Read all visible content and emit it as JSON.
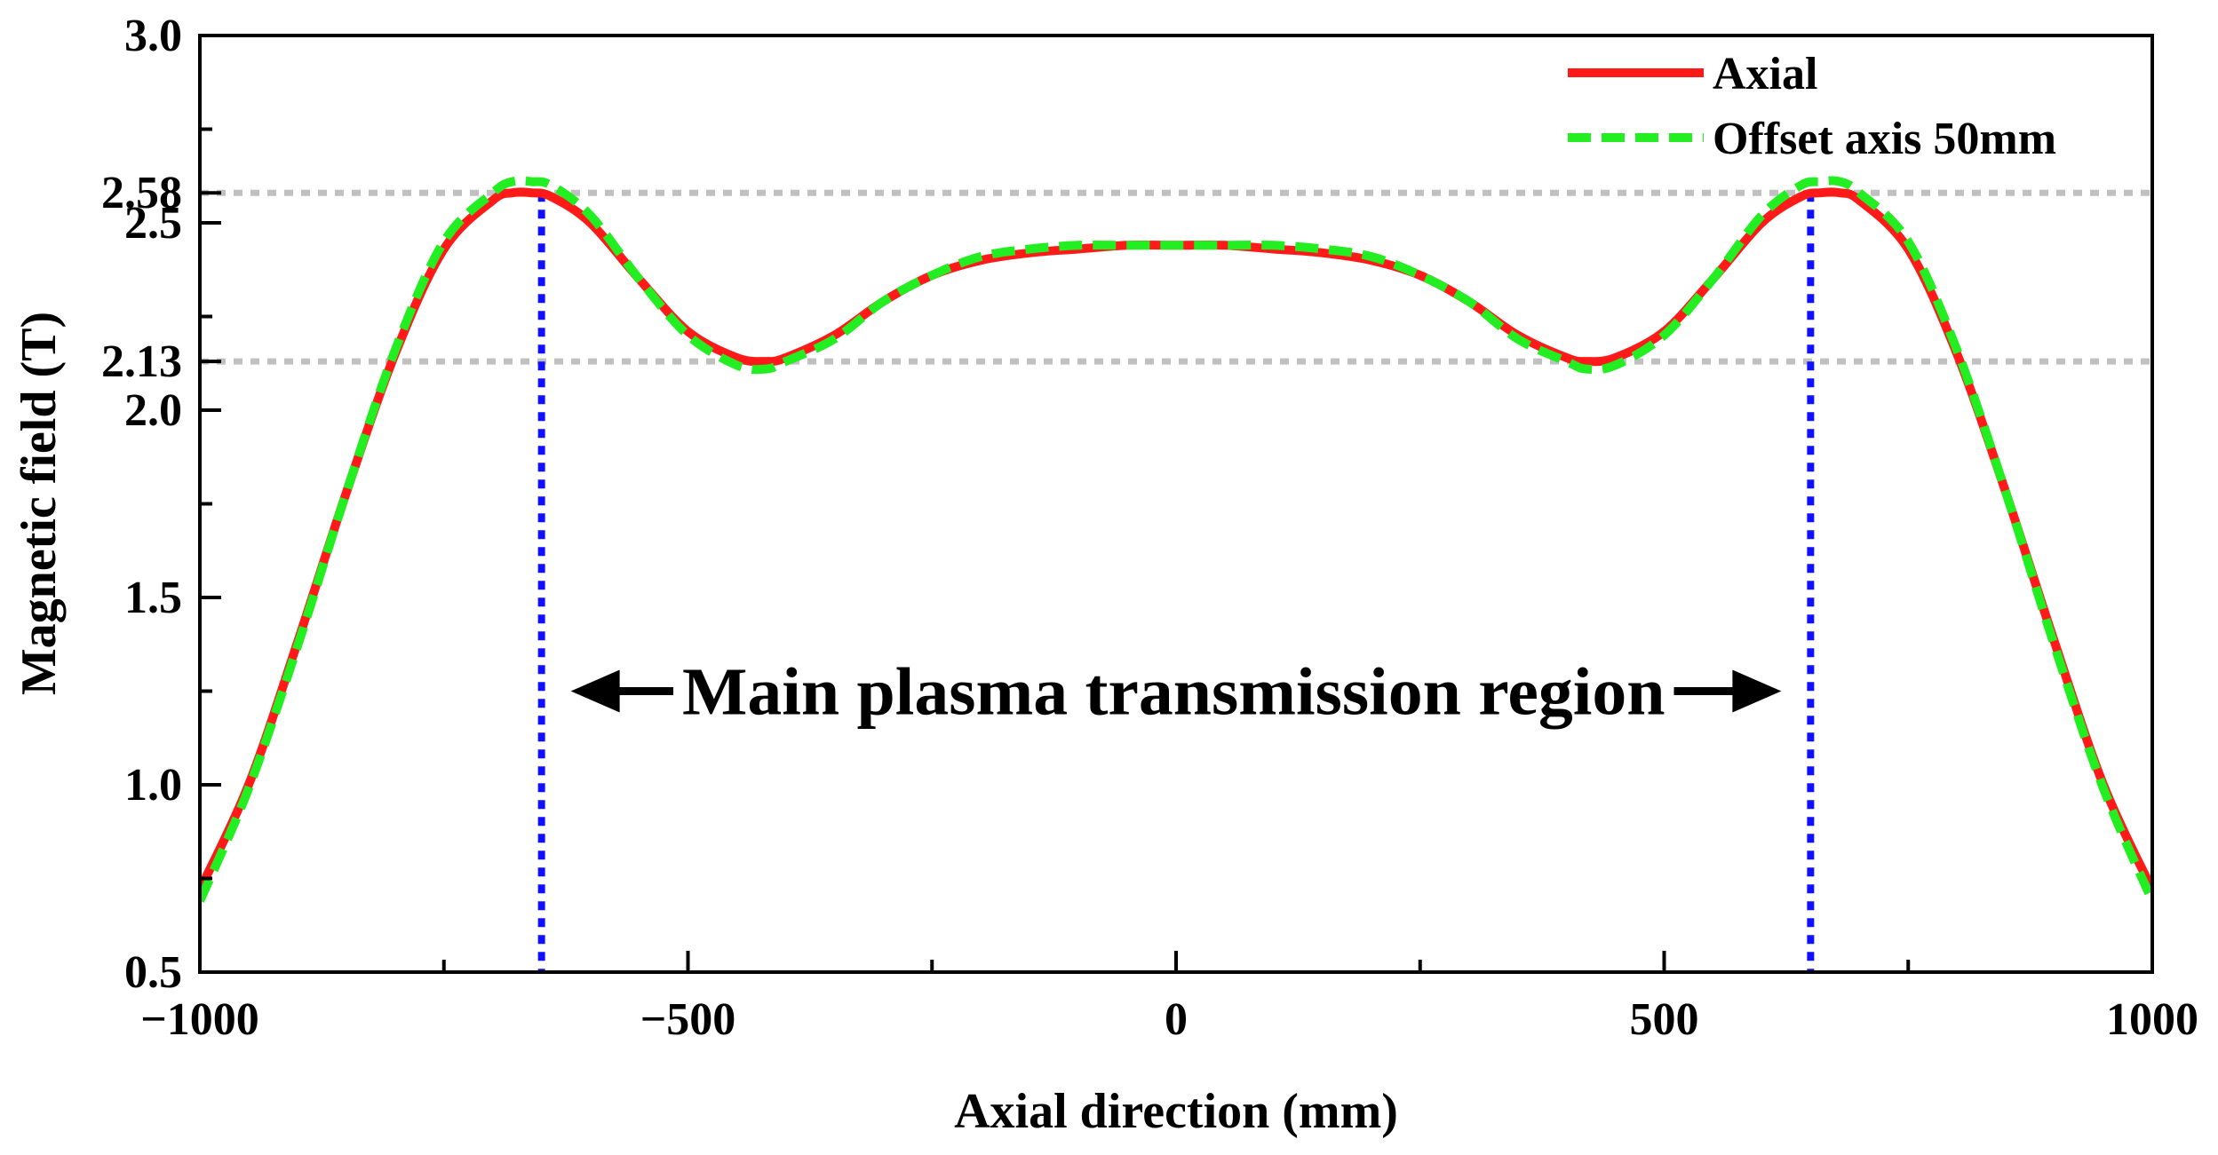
{
  "chart_data": {
    "type": "line",
    "title": "",
    "xlabel": "Axial direction (mm)",
    "ylabel": "Magnetic field (T)",
    "xlim": [
      -1000,
      1000
    ],
    "ylim": [
      0.5,
      3.0
    ],
    "xticks": [
      {
        "value": -1000,
        "label": "−1000"
      },
      {
        "value": -500,
        "label": "−500"
      },
      {
        "value": 0,
        "label": "0"
      },
      {
        "value": 500,
        "label": "500"
      },
      {
        "value": 1000,
        "label": "1000"
      }
    ],
    "x_minor_ticks": [
      -750,
      -250,
      250,
      750
    ],
    "yticks": [
      {
        "value": 0.5,
        "label": "0.5"
      },
      {
        "value": 1.0,
        "label": "1.0"
      },
      {
        "value": 1.5,
        "label": "1.5"
      },
      {
        "value": 2.0,
        "label": "2.0"
      },
      {
        "value": 2.13,
        "label": "2.13"
      },
      {
        "value": 2.5,
        "label": "2.5"
      },
      {
        "value": 2.58,
        "label": "2.58"
      },
      {
        "value": 3.0,
        "label": "3.0"
      }
    ],
    "y_minor_ticks": [
      0.75,
      1.25,
      1.75,
      2.25,
      2.75
    ],
    "grid": false,
    "legend_position": "top-right",
    "series": [
      {
        "name": "Axial",
        "color": "#ff1a1a",
        "style": "solid",
        "x": [
          -1000,
          -950,
          -900,
          -850,
          -800,
          -750,
          -700,
          -680,
          -660,
          -640,
          -600,
          -550,
          -500,
          -450,
          -420,
          -400,
          -350,
          -300,
          -250,
          -200,
          -150,
          -100,
          -50,
          0,
          50,
          100,
          150,
          200,
          250,
          300,
          350,
          400,
          420,
          450,
          500,
          550,
          600,
          640,
          660,
          680,
          700,
          750,
          800,
          850,
          900,
          950,
          1000
        ],
        "values": [
          0.72,
          1.0,
          1.38,
          1.78,
          2.15,
          2.43,
          2.56,
          2.58,
          2.58,
          2.57,
          2.5,
          2.35,
          2.21,
          2.14,
          2.13,
          2.14,
          2.2,
          2.29,
          2.36,
          2.4,
          2.42,
          2.43,
          2.44,
          2.44,
          2.44,
          2.43,
          2.42,
          2.4,
          2.36,
          2.29,
          2.2,
          2.14,
          2.13,
          2.14,
          2.21,
          2.35,
          2.5,
          2.57,
          2.58,
          2.58,
          2.56,
          2.43,
          2.15,
          1.78,
          1.38,
          1.0,
          0.72
        ]
      },
      {
        "name": "Offset axis 50mm",
        "color": "#22ee22",
        "style": "dashed",
        "x": [
          -1000,
          -950,
          -900,
          -850,
          -800,
          -750,
          -700,
          -680,
          -660,
          -640,
          -600,
          -550,
          -500,
          -450,
          -420,
          -400,
          -350,
          -300,
          -250,
          -200,
          -150,
          -100,
          -50,
          0,
          50,
          100,
          150,
          200,
          250,
          300,
          350,
          400,
          420,
          450,
          500,
          550,
          600,
          640,
          660,
          680,
          700,
          750,
          800,
          850,
          900,
          950,
          1000
        ],
        "values": [
          0.69,
          0.99,
          1.37,
          1.78,
          2.16,
          2.45,
          2.58,
          2.61,
          2.61,
          2.6,
          2.52,
          2.35,
          2.2,
          2.12,
          2.11,
          2.13,
          2.19,
          2.29,
          2.36,
          2.41,
          2.43,
          2.44,
          2.44,
          2.44,
          2.44,
          2.44,
          2.43,
          2.41,
          2.36,
          2.29,
          2.19,
          2.13,
          2.11,
          2.12,
          2.2,
          2.35,
          2.52,
          2.6,
          2.61,
          2.61,
          2.58,
          2.45,
          2.16,
          1.78,
          1.37,
          0.99,
          0.69
        ]
      }
    ],
    "reference_lines": [
      {
        "orientation": "horizontal",
        "value": 2.58,
        "color": "#c0c0c0",
        "style": "dotted"
      },
      {
        "orientation": "horizontal",
        "value": 2.13,
        "color": "#c0c0c0",
        "style": "dotted"
      },
      {
        "orientation": "vertical",
        "value": -650,
        "color": "#1010ff",
        "style": "dotted"
      },
      {
        "orientation": "vertical",
        "value": 650,
        "color": "#1010ff",
        "style": "dotted"
      }
    ],
    "annotation": {
      "text": "Main plasma transmission region",
      "y": 1.25,
      "arrow_from": -620,
      "arrow_to": 620,
      "text_from": -515,
      "text_to": 510
    }
  }
}
